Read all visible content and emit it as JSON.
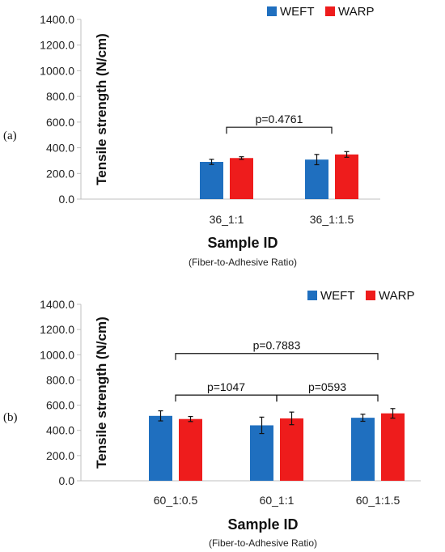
{
  "chart_data": [
    {
      "type": "bar",
      "panel_label": "(a)",
      "ylabel": "Tensile strength (N/cm)",
      "xlabel": "Sample ID",
      "xlabel_sub": "(Fiber-to-Adhesive Ratio)",
      "ylim": [
        0,
        1400
      ],
      "yticks": [
        "0.0",
        "200.0",
        "400.0",
        "600.0",
        "800.0",
        "1000.0",
        "1200.0",
        "1400.0"
      ],
      "categories": [
        "36_1:1",
        "36_1:1.5"
      ],
      "legend_position": "top-right",
      "series": [
        {
          "name": "WEFT",
          "color": "#1f6fbf",
          "values": [
            290,
            308
          ],
          "errors": [
            20,
            40
          ]
        },
        {
          "name": "WARP",
          "color": "#ee1c1c",
          "values": [
            320,
            348
          ],
          "errors": [
            10,
            22
          ]
        }
      ],
      "brackets": [
        {
          "from": 0,
          "to": 1,
          "y": 560,
          "label": "p=0.4761"
        }
      ]
    },
    {
      "type": "bar",
      "panel_label": "(b)",
      "ylabel": "Tensile strength (N/cm)",
      "xlabel": "Sample ID",
      "xlabel_sub": "(Fiber-to-Adhesive Ratio)",
      "ylim": [
        0,
        1400
      ],
      "yticks": [
        "0.0",
        "200.0",
        "400.0",
        "600.0",
        "800.0",
        "1000.0",
        "1200.0",
        "1400.0"
      ],
      "categories": [
        "60_1:0.5",
        "60_1:1",
        "60_1:1.5"
      ],
      "legend_position": "top-right",
      "series": [
        {
          "name": "WEFT",
          "color": "#1f6fbf",
          "values": [
            515,
            440,
            500
          ],
          "errors": [
            40,
            65,
            28
          ]
        },
        {
          "name": "WARP",
          "color": "#ee1c1c",
          "values": [
            490,
            495,
            535
          ],
          "errors": [
            20,
            50,
            38
          ]
        }
      ],
      "brackets": [
        {
          "from": 0,
          "to": 2,
          "y": 1010,
          "label": "p=0.7883"
        },
        {
          "from": 0,
          "to": 1,
          "y": 680,
          "label": "p=1047"
        },
        {
          "from": 1,
          "to": 2,
          "y": 680,
          "label": "p=0593"
        }
      ]
    }
  ]
}
